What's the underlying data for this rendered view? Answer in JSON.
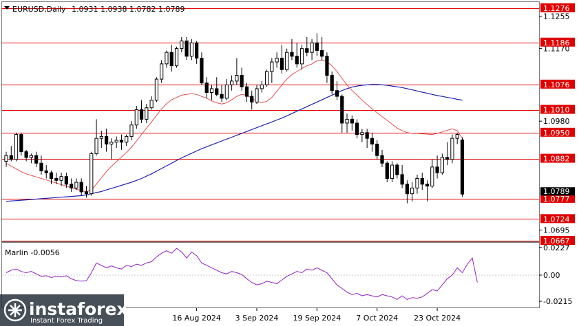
{
  "header": {
    "symbol_label": "EURUSD,Daily",
    "ohlc": [
      "1.0931",
      "1.0938",
      "1.0782",
      "1.0789"
    ]
  },
  "indicator_label": "Marlin -0.0056",
  "watermark": {
    "brand": "instaforex",
    "tagline": "Instant Forex Trading"
  },
  "colors": {
    "up_candle": "#ffffff",
    "down_candle": "#000000",
    "level_line": "#e00000",
    "level_label_bg": "#e00000",
    "ma_fast": "#e05050",
    "ma_slow": "#2020b0",
    "oscillator": "#9020c0",
    "current_price_bg": "#000000"
  },
  "chart_data": {
    "type": "candlestick",
    "y_range": [
      1.0667,
      1.129
    ],
    "price_ticks": [
      "1.1255",
      "1.1170",
      "1.0980",
      "1.0695"
    ],
    "current_price": {
      "value": 1.0789,
      "label": "1.0789"
    },
    "levels": [
      {
        "value": 1.1276,
        "label": "1.1276"
      },
      {
        "value": 1.1186,
        "label": "1.1186"
      },
      {
        "value": 1.1076,
        "label": "1.1076"
      },
      {
        "value": 1.101,
        "label": "1.1010"
      },
      {
        "value": 1.095,
        "label": "1.0950"
      },
      {
        "value": 1.0882,
        "label": "1.0882"
      },
      {
        "value": 1.0777,
        "label": "1.0777"
      },
      {
        "value": 1.0724,
        "label": "1.0724"
      },
      {
        "value": 1.0667,
        "label": "1.0667"
      }
    ],
    "x_labels": [
      {
        "index": 38,
        "label": "16 Aug 2024"
      },
      {
        "index": 50,
        "label": "3 Sep 2024"
      },
      {
        "index": 62,
        "label": "19 Sep 2024"
      },
      {
        "index": 74,
        "label": "7 Oct 2024"
      },
      {
        "index": 86,
        "label": "23 Oct 2024"
      }
    ],
    "candles": [
      [
        1.0875,
        1.09,
        1.086,
        1.089
      ],
      [
        1.089,
        1.0915,
        1.0875,
        1.088
      ],
      [
        1.088,
        1.095,
        1.0875,
        1.0945
      ],
      [
        1.0945,
        1.095,
        1.089,
        1.09
      ],
      [
        1.09,
        1.0905,
        1.0875,
        1.0885
      ],
      [
        1.0885,
        1.0895,
        1.087,
        1.089
      ],
      [
        1.089,
        1.09,
        1.086,
        1.087
      ],
      [
        1.087,
        1.089,
        1.084,
        1.085
      ],
      [
        1.085,
        1.0865,
        1.083,
        1.0845
      ],
      [
        1.0845,
        1.085,
        1.0815,
        1.083
      ],
      [
        1.083,
        1.0845,
        1.0815,
        1.0825
      ],
      [
        1.0825,
        1.0845,
        1.081,
        1.0835
      ],
      [
        1.0835,
        1.0845,
        1.0805,
        1.0815
      ],
      [
        1.0815,
        1.083,
        1.0795,
        1.0805
      ],
      [
        1.0805,
        1.083,
        1.08,
        1.082
      ],
      [
        1.082,
        1.083,
        1.0785,
        1.0795
      ],
      [
        1.0795,
        1.081,
        1.078,
        1.079
      ],
      [
        1.079,
        1.09,
        1.0785,
        1.0895
      ],
      [
        1.0895,
        1.0985,
        1.089,
        1.0935
      ],
      [
        1.0935,
        1.0955,
        1.091,
        1.094
      ],
      [
        1.094,
        1.096,
        1.09,
        1.092
      ],
      [
        1.092,
        1.0935,
        1.088,
        1.0925
      ],
      [
        1.0925,
        1.094,
        1.091,
        1.093
      ],
      [
        1.093,
        1.0945,
        1.0905,
        1.0925
      ],
      [
        1.0925,
        1.0945,
        1.0915,
        1.094
      ],
      [
        1.094,
        1.098,
        1.093,
        1.097
      ],
      [
        1.097,
        1.102,
        1.096,
        1.101
      ],
      [
        1.101,
        1.1035,
        1.0975,
        1.0985
      ],
      [
        1.0985,
        1.1025,
        1.0975,
        1.1015
      ],
      [
        1.1015,
        1.1045,
        1.101,
        1.1035
      ],
      [
        1.1035,
        1.1095,
        1.103,
        1.109
      ],
      [
        1.109,
        1.114,
        1.108,
        1.113
      ],
      [
        1.113,
        1.1165,
        1.112,
        1.116
      ],
      [
        1.116,
        1.118,
        1.111,
        1.1125
      ],
      [
        1.1125,
        1.1175,
        1.112,
        1.117
      ],
      [
        1.117,
        1.12,
        1.116,
        1.119
      ],
      [
        1.119,
        1.12,
        1.114,
        1.115
      ],
      [
        1.115,
        1.1195,
        1.114,
        1.1185
      ],
      [
        1.1185,
        1.119,
        1.113,
        1.1145
      ],
      [
        1.1145,
        1.116,
        1.1075,
        1.108
      ],
      [
        1.108,
        1.1095,
        1.104,
        1.1055
      ],
      [
        1.1055,
        1.1075,
        1.1035,
        1.1065
      ],
      [
        1.1065,
        1.1095,
        1.1045,
        1.105
      ],
      [
        1.105,
        1.1075,
        1.103,
        1.104
      ],
      [
        1.104,
        1.109,
        1.1035,
        1.1075
      ],
      [
        1.1075,
        1.11,
        1.106,
        1.1085
      ],
      [
        1.1085,
        1.1145,
        1.1075,
        1.11
      ],
      [
        1.11,
        1.112,
        1.106,
        1.107
      ],
      [
        1.107,
        1.108,
        1.103,
        1.1045
      ],
      [
        1.1045,
        1.106,
        1.101,
        1.103
      ],
      [
        1.103,
        1.1075,
        1.1025,
        1.1065
      ],
      [
        1.1065,
        1.1085,
        1.1055,
        1.1075
      ],
      [
        1.1075,
        1.1115,
        1.107,
        1.111
      ],
      [
        1.111,
        1.1145,
        1.108,
        1.1135
      ],
      [
        1.1135,
        1.116,
        1.112,
        1.1145
      ],
      [
        1.1145,
        1.118,
        1.1105,
        1.1115
      ],
      [
        1.1115,
        1.117,
        1.111,
        1.116
      ],
      [
        1.116,
        1.1195,
        1.114,
        1.115
      ],
      [
        1.115,
        1.1185,
        1.112,
        1.113
      ],
      [
        1.113,
        1.118,
        1.1115,
        1.117
      ],
      [
        1.117,
        1.12,
        1.115,
        1.116
      ],
      [
        1.116,
        1.1195,
        1.114,
        1.1185
      ],
      [
        1.1185,
        1.121,
        1.115,
        1.1165
      ],
      [
        1.1165,
        1.12,
        1.114,
        1.115
      ],
      [
        1.115,
        1.116,
        1.108,
        1.11
      ],
      [
        1.11,
        1.111,
        1.105,
        1.106
      ],
      [
        1.106,
        1.1085,
        1.1035,
        1.1045
      ],
      [
        1.1045,
        1.105,
        1.095,
        1.0975
      ],
      [
        1.0975,
        1.1,
        1.095,
        1.0985
      ],
      [
        1.0985,
        1.0995,
        1.0955,
        1.0975
      ],
      [
        1.0975,
        1.0985,
        1.0935,
        1.0945
      ],
      [
        1.0945,
        1.096,
        1.0925,
        1.095
      ],
      [
        1.095,
        1.096,
        1.091,
        1.0935
      ],
      [
        1.0935,
        1.095,
        1.09,
        1.092
      ],
      [
        1.092,
        1.093,
        1.088,
        1.089
      ],
      [
        1.089,
        1.0905,
        1.086,
        1.087
      ],
      [
        1.087,
        1.0875,
        1.082,
        1.083
      ],
      [
        1.083,
        1.0875,
        1.082,
        1.0865
      ],
      [
        1.0865,
        1.087,
        1.083,
        1.084
      ],
      [
        1.084,
        1.0865,
        1.0805,
        1.0815
      ],
      [
        1.0815,
        1.0825,
        1.0765,
        1.079
      ],
      [
        1.079,
        1.082,
        1.077,
        1.0805
      ],
      [
        1.0805,
        1.084,
        1.079,
        1.083
      ],
      [
        1.083,
        1.0845,
        1.08,
        1.0815
      ],
      [
        1.0815,
        1.0825,
        1.077,
        1.081
      ],
      [
        1.081,
        1.088,
        1.0805,
        1.086
      ],
      [
        1.086,
        1.089,
        1.083,
        1.0845
      ],
      [
        1.0845,
        1.0895,
        1.084,
        1.0885
      ],
      [
        1.0885,
        1.0925,
        1.0865,
        1.088
      ],
      [
        1.088,
        1.0945,
        1.087,
        1.0935
      ],
      [
        1.0935,
        1.095,
        1.092,
        1.0945
      ],
      [
        1.0931,
        1.0938,
        1.0782,
        1.0789
      ]
    ],
    "ma_fast": [
      1.087,
      1.0862,
      1.0855,
      1.0848,
      1.0842,
      1.0838,
      1.0834,
      1.083,
      1.0826,
      1.0822,
      1.0818,
      1.0814,
      1.081,
      1.0806,
      1.0802,
      1.0798,
      1.0795,
      1.08,
      1.0815,
      1.0832,
      1.0848,
      1.0862,
      1.0874,
      1.0886,
      1.0898,
      1.0912,
      1.0928,
      1.0945,
      1.0962,
      1.0978,
      1.0995,
      1.1012,
      1.1026,
      1.1036,
      1.1042,
      1.1048,
      1.105,
      1.1052,
      1.105,
      1.1045,
      1.104,
      1.1033,
      1.1028,
      1.1025,
      1.1028,
      1.1036,
      1.1045,
      1.105,
      1.1048,
      1.104,
      1.1032,
      1.1028,
      1.1032,
      1.1042,
      1.1058,
      1.1075,
      1.109,
      1.1102,
      1.111,
      1.1118,
      1.1125,
      1.113,
      1.1138,
      1.114,
      1.1135,
      1.1125,
      1.111,
      1.1092,
      1.1075,
      1.106,
      1.1048,
      1.1035,
      1.1024,
      1.1012,
      1.1002,
      1.0992,
      1.0982,
      1.0972,
      1.0962,
      1.0955,
      1.095,
      1.0948,
      1.0948,
      1.0947,
      1.0946,
      1.0945,
      1.0948,
      1.0952,
      1.0956,
      1.096,
      1.0955,
      1.0935
    ],
    "ma_slow": [
      1.077,
      1.0771,
      1.0772,
      1.0773,
      1.0774,
      1.0775,
      1.0776,
      1.0777,
      1.0778,
      1.0779,
      1.078,
      1.0781,
      1.0782,
      1.0783,
      1.0784,
      1.0785,
      1.0787,
      1.079,
      1.0793,
      1.0796,
      1.08,
      1.0804,
      1.0808,
      1.0812,
      1.0816,
      1.082,
      1.0825,
      1.083,
      1.0836,
      1.0842,
      1.0849,
      1.0856,
      1.0863,
      1.087,
      1.0877,
      1.0884,
      1.089,
      1.0896,
      1.0902,
      1.0908,
      1.0913,
      1.0918,
      1.0923,
      1.0928,
      1.0933,
      1.0938,
      1.0943,
      1.0948,
      1.0953,
      1.0958,
      1.0963,
      1.0968,
      1.0973,
      1.0978,
      1.0983,
      1.0988,
      1.0994,
      1.1,
      1.1006,
      1.1012,
      1.1018,
      1.1024,
      1.103,
      1.1036,
      1.1042,
      1.1048,
      1.1054,
      1.106,
      1.1065,
      1.1069,
      1.1072,
      1.1074,
      1.1075,
      1.1076,
      1.1076,
      1.1075,
      1.1074,
      1.1072,
      1.107,
      1.1068,
      1.1065,
      1.1062,
      1.1059,
      1.1056,
      1.1053,
      1.105,
      1.1047,
      1.1045,
      1.1042,
      1.104,
      1.1037,
      1.1035
    ],
    "oscillator": {
      "y_range": [
        -0.026,
        0.026
      ],
      "ticks": [
        "0.0227",
        "0.00",
        "-0.0215"
      ],
      "values": [
        0.002,
        0.004,
        0.005,
        0.003,
        0.002,
        0.003,
        0.001,
        -0.001,
        -0.0005,
        -0.002,
        -0.001,
        -0.0015,
        -0.0005,
        -0.003,
        -0.0045,
        -0.005,
        -0.0045,
        0.002,
        0.01,
        0.008,
        0.006,
        0.0075,
        0.006,
        0.005,
        0.008,
        0.007,
        0.009,
        0.008,
        0.01,
        0.011,
        0.015,
        0.018,
        0.02,
        0.018,
        0.022,
        0.019,
        0.014,
        0.019,
        0.016,
        0.01,
        0.008,
        0.006,
        0.004,
        0.002,
        0.001,
        0.003,
        0.002,
        0.0005,
        -0.003,
        -0.006,
        -0.008,
        -0.007,
        -0.005,
        -0.006,
        -0.007,
        -0.004,
        -0.001,
        0.001,
        0.003,
        0.002,
        0.005,
        0.004,
        0.006,
        0.004,
        0.002,
        -0.003,
        -0.008,
        -0.011,
        -0.014,
        -0.016,
        -0.015,
        -0.017,
        -0.016,
        -0.017,
        -0.018,
        -0.016,
        -0.017,
        -0.018,
        -0.02,
        -0.017,
        -0.02,
        -0.0185,
        -0.019,
        -0.018,
        -0.015,
        -0.012,
        -0.013,
        -0.008,
        -0.003,
        0.0,
        0.006,
        0.002,
        0.009,
        0.014,
        -0.006
      ]
    }
  }
}
